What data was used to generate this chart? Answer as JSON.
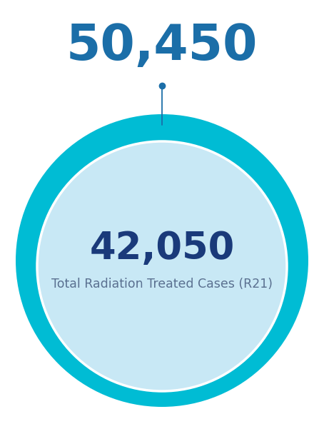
{
  "outer_value": "50,450",
  "inner_value": "42,050",
  "inner_label": "Total Radiation Treated Cases (R21)",
  "outer_circle_color": "#00BCD4",
  "inner_circle_color": "#C8E8F5",
  "outer_value_color": "#1B6EA8",
  "inner_value_color": "#1A3A7A",
  "inner_label_color": "#5A7090",
  "needle_color": "#1B6EA8",
  "background_color": "#ffffff",
  "fig_width": 4.54,
  "fig_height": 5.94,
  "outer_value_fontsize": 50,
  "inner_value_fontsize": 38,
  "inner_label_fontsize": 12.5
}
